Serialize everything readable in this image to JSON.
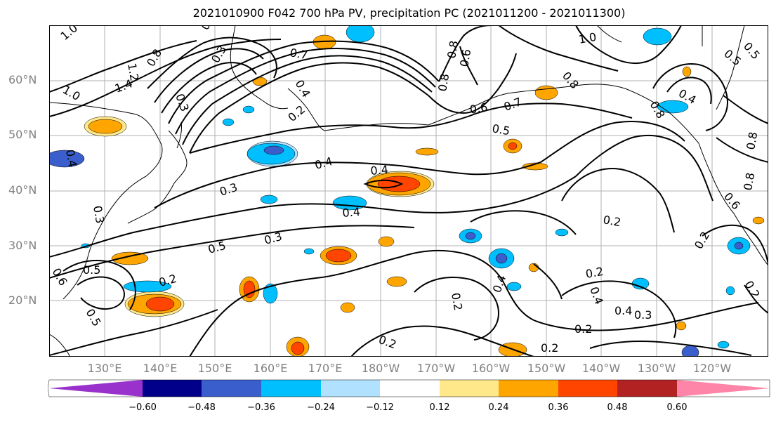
{
  "title": "2021010900 F042 700 hPa PV, precipitation PC (2021011200 - 2021011300)",
  "lat_labels": [
    "60°N",
    "50°N",
    "40°N",
    "30°N",
    "20°N"
  ],
  "lon_labels": [
    "130°E",
    "140°E",
    "150°E",
    "160°E",
    "170°E",
    "180°W",
    "170°W",
    "160°W",
    "150°W",
    "140°W",
    "130°W",
    "120°W"
  ],
  "colorbar": {
    "colors": [
      "#9932cc",
      "#00008b",
      "#3a5fcd",
      "#00bfff",
      "#b0e2ff",
      "#ffffff",
      "#ffe88a",
      "#ffa500",
      "#ff4500",
      "#b22222",
      "#ff85a8"
    ],
    "ticks": [
      "−0.60",
      "−0.48",
      "−0.36",
      "−0.24",
      "−0.12",
      "0.12",
      "0.24",
      "0.36",
      "0.48",
      "0.60"
    ]
  },
  "contour_labels": [
    "1.0",
    "1.0",
    "1.2",
    "1.4",
    "0.8",
    "0.6",
    "0.3",
    "0.7",
    "0.3",
    "0.2",
    "0.4",
    "0.4",
    "0.3",
    "0.4",
    "0.4",
    "0.5",
    "0.3",
    "0.5",
    "0.6",
    "0.2",
    "0.4",
    "0.3",
    "0.2",
    "0.2",
    "0.6",
    "0.5",
    "0.8",
    "0.7",
    "1.0",
    "0.8",
    "0.4",
    "0.5",
    "0.8",
    "0.2",
    "0.2",
    "0.4",
    "0.4",
    "0.3",
    "0.2",
    "0.2",
    "0.2",
    "0.8",
    "0.6",
    "0.2",
    "0.5",
    "0.6",
    "0.8",
    "0.8",
    "0.5",
    "0.4"
  ]
}
